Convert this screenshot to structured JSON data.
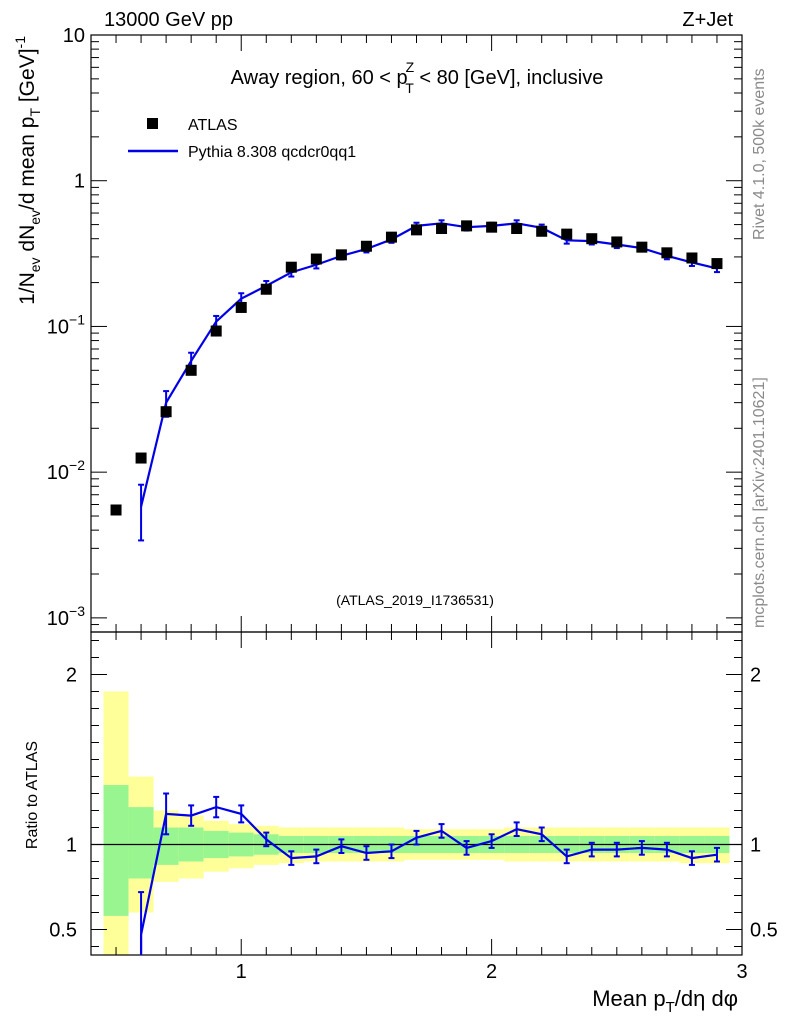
{
  "header": {
    "left": "13000 GeV pp",
    "right": "Z+Jet"
  },
  "side_labels": {
    "rivet": "Rivet 4.1.0,  500k events",
    "site": "mcplots.cern.ch [arXiv:2401.10621]"
  },
  "colors": {
    "mc": "#0000e6",
    "data": "#000000",
    "band_inner": "#99f58f",
    "band_outer": "#ffff99"
  },
  "chart_data": [
    {
      "id": "main",
      "type": "scatter",
      "title_parts": [
        "Away region, 60 < p",
        "Z",
        "T",
        " < 80 [GeV], inclusive"
      ],
      "ylabel_parts": [
        "1/N",
        "ev",
        " dN",
        "ev",
        "/d mean p",
        "T",
        " [GeV]",
        "-1"
      ],
      "yscale": "log",
      "ylim": [
        0.0008,
        10
      ],
      "xlim": [
        0.4,
        3.0
      ],
      "yticks": [
        {
          "value": 10,
          "base": "10",
          "exp": ""
        },
        {
          "value": 1,
          "base": "1",
          "exp": ""
        },
        {
          "value": 0.1,
          "base": "10",
          "exp": "−1"
        },
        {
          "value": 0.01,
          "base": "10",
          "exp": "−2"
        },
        {
          "value": 0.001,
          "base": "10",
          "exp": "−3"
        }
      ],
      "legend": [
        {
          "label": "ATLAS",
          "marker": "square"
        },
        {
          "label": "Pythia 8.308 qcdcr0qq1",
          "marker": "line"
        }
      ],
      "watermark": "(ATLAS_2019_I1736531)",
      "x": [
        0.5,
        0.6,
        0.7,
        0.8,
        0.9,
        1.0,
        1.1,
        1.2,
        1.3,
        1.4,
        1.5,
        1.6,
        1.7,
        1.8,
        1.9,
        2.0,
        2.1,
        2.2,
        2.3,
        2.4,
        2.5,
        2.6,
        2.7,
        2.8,
        2.9
      ],
      "data_values": [
        0.0055,
        0.0125,
        0.026,
        0.05,
        0.093,
        0.135,
        0.18,
        0.255,
        0.29,
        0.31,
        0.355,
        0.41,
        0.46,
        0.47,
        0.49,
        0.48,
        0.47,
        0.45,
        0.43,
        0.4,
        0.38,
        0.35,
        0.32,
        0.295,
        0.27
      ],
      "mc_x": [
        0.6,
        0.7,
        0.8,
        0.9,
        1.0,
        1.1,
        1.2,
        1.3,
        1.4,
        1.5,
        1.6,
        1.7,
        1.8,
        1.9,
        2.0,
        2.1,
        2.2,
        2.3,
        2.4,
        2.5,
        2.6,
        2.7,
        2.8,
        2.9
      ],
      "mc_values": [
        0.0058,
        0.03,
        0.058,
        0.108,
        0.155,
        0.19,
        0.235,
        0.265,
        0.305,
        0.34,
        0.395,
        0.49,
        0.51,
        0.48,
        0.49,
        0.51,
        0.475,
        0.39,
        0.385,
        0.365,
        0.345,
        0.305,
        0.275,
        0.25
      ],
      "mc_err": [
        0.0024,
        0.006,
        0.008,
        0.01,
        0.014,
        0.015,
        0.015,
        0.015,
        0.017,
        0.018,
        0.02,
        0.025,
        0.025,
        0.025,
        0.025,
        0.025,
        0.025,
        0.02,
        0.02,
        0.02,
        0.018,
        0.016,
        0.015,
        0.014
      ]
    },
    {
      "id": "ratio",
      "type": "line",
      "ylabel": "Ratio to ATLAS",
      "xlabel_parts": [
        "Mean p",
        "T",
        "/dη dφ"
      ],
      "ylim": [
        0.35,
        2.25
      ],
      "xlim": [
        0.4,
        3.0
      ],
      "xticks": [
        1,
        2,
        3
      ],
      "yticks": [
        2,
        1,
        0.5
      ],
      "bands": [
        {
          "x": [
            0.45,
            0.55
          ],
          "inner": [
            0.58,
            1.35
          ],
          "outer": [
            0.2,
            1.9
          ]
        },
        {
          "x": [
            0.55,
            0.65
          ],
          "inner": [
            0.8,
            1.22
          ],
          "outer": [
            0.6,
            1.4
          ]
        },
        {
          "x": [
            0.65,
            0.75
          ],
          "inner": [
            0.88,
            1.1
          ],
          "outer": [
            0.78,
            1.2
          ]
        },
        {
          "x": [
            0.75,
            0.85
          ],
          "inner": [
            0.9,
            1.1
          ],
          "outer": [
            0.8,
            1.17
          ]
        },
        {
          "x": [
            0.85,
            0.95
          ],
          "inner": [
            0.92,
            1.08
          ],
          "outer": [
            0.84,
            1.14
          ]
        },
        {
          "x": [
            0.95,
            1.05
          ],
          "inner": [
            0.93,
            1.07
          ],
          "outer": [
            0.86,
            1.12
          ]
        },
        {
          "x": [
            1.05,
            1.15
          ],
          "inner": [
            0.94,
            1.06
          ],
          "outer": [
            0.88,
            1.11
          ]
        },
        {
          "x": [
            1.15,
            1.25
          ],
          "inner": [
            0.95,
            1.05
          ],
          "outer": [
            0.89,
            1.1
          ]
        },
        {
          "x": [
            1.25,
            1.35
          ],
          "inner": [
            0.95,
            1.05
          ],
          "outer": [
            0.9,
            1.1
          ]
        },
        {
          "x": [
            1.35,
            1.45
          ],
          "inner": [
            0.95,
            1.05
          ],
          "outer": [
            0.9,
            1.1
          ]
        },
        {
          "x": [
            1.45,
            1.55
          ],
          "inner": [
            0.95,
            1.05
          ],
          "outer": [
            0.9,
            1.1
          ]
        },
        {
          "x": [
            1.55,
            1.65
          ],
          "inner": [
            0.95,
            1.05
          ],
          "outer": [
            0.9,
            1.1
          ]
        },
        {
          "x": [
            1.65,
            1.75
          ],
          "inner": [
            0.95,
            1.05
          ],
          "outer": [
            0.91,
            1.09
          ]
        },
        {
          "x": [
            1.75,
            1.85
          ],
          "inner": [
            0.95,
            1.05
          ],
          "outer": [
            0.91,
            1.09
          ]
        },
        {
          "x": [
            1.85,
            1.95
          ],
          "inner": [
            0.95,
            1.05
          ],
          "outer": [
            0.91,
            1.09
          ]
        },
        {
          "x": [
            1.95,
            2.05
          ],
          "inner": [
            0.95,
            1.05
          ],
          "outer": [
            0.91,
            1.09
          ]
        },
        {
          "x": [
            2.05,
            2.15
          ],
          "inner": [
            0.95,
            1.05
          ],
          "outer": [
            0.9,
            1.1
          ]
        },
        {
          "x": [
            2.15,
            2.25
          ],
          "inner": [
            0.95,
            1.05
          ],
          "outer": [
            0.9,
            1.1
          ]
        },
        {
          "x": [
            2.25,
            2.35
          ],
          "inner": [
            0.95,
            1.05
          ],
          "outer": [
            0.9,
            1.1
          ]
        },
        {
          "x": [
            2.35,
            2.45
          ],
          "inner": [
            0.95,
            1.05
          ],
          "outer": [
            0.9,
            1.1
          ]
        },
        {
          "x": [
            2.45,
            2.55
          ],
          "inner": [
            0.95,
            1.05
          ],
          "outer": [
            0.9,
            1.1
          ]
        },
        {
          "x": [
            2.55,
            2.65
          ],
          "inner": [
            0.95,
            1.05
          ],
          "outer": [
            0.9,
            1.1
          ]
        },
        {
          "x": [
            2.65,
            2.75
          ],
          "inner": [
            0.95,
            1.05
          ],
          "outer": [
            0.9,
            1.1
          ]
        },
        {
          "x": [
            2.75,
            2.85
          ],
          "inner": [
            0.95,
            1.05
          ],
          "outer": [
            0.89,
            1.1
          ]
        },
        {
          "x": [
            2.85,
            2.95
          ],
          "inner": [
            0.95,
            1.05
          ],
          "outer": [
            0.89,
            1.1
          ]
        }
      ],
      "x": [
        0.6,
        0.7,
        0.8,
        0.9,
        1.0,
        1.1,
        1.2,
        1.3,
        1.4,
        1.5,
        1.6,
        1.7,
        1.8,
        1.9,
        2.0,
        2.1,
        2.2,
        2.3,
        2.4,
        2.5,
        2.6,
        2.7,
        2.8,
        2.9
      ],
      "values": [
        0.47,
        1.18,
        1.17,
        1.22,
        1.18,
        1.03,
        0.92,
        0.93,
        0.99,
        0.95,
        0.96,
        1.04,
        1.08,
        0.98,
        1.02,
        1.09,
        1.06,
        0.93,
        0.97,
        0.97,
        0.98,
        0.97,
        0.92,
        0.94
      ],
      "err": [
        0.25,
        0.12,
        0.06,
        0.06,
        0.05,
        0.04,
        0.04,
        0.04,
        0.04,
        0.04,
        0.04,
        0.04,
        0.04,
        0.04,
        0.04,
        0.04,
        0.04,
        0.04,
        0.04,
        0.04,
        0.04,
        0.04,
        0.04,
        0.04
      ]
    }
  ]
}
